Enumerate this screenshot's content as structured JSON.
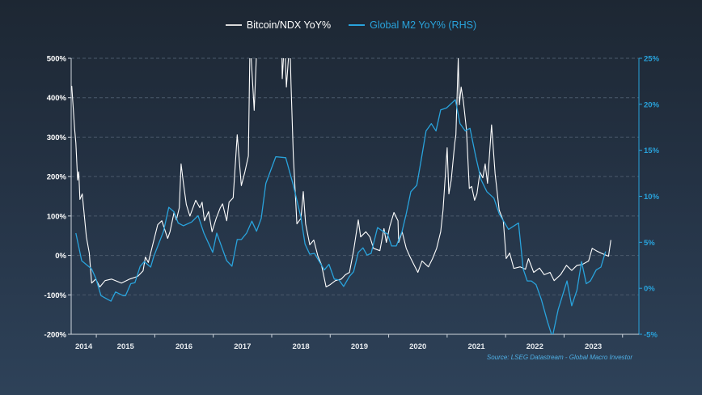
{
  "chart_data": {
    "type": "line",
    "title": "",
    "source": "Source: LSEG Datastream - Global Macro Investor",
    "xlim": [
      2014.57,
      2024.28
    ],
    "x_ticks": [
      2014,
      2015,
      2016,
      2017,
      2018,
      2019,
      2020,
      2021,
      2022,
      2023
    ],
    "legend_placement": "top-center",
    "grid": "horizontal dashed",
    "y_left": {
      "label": "",
      "lim": [
        -200,
        500
      ],
      "ticks": [
        "-200%",
        "-100%",
        "0%",
        "100%",
        "200%",
        "300%",
        "400%",
        "500%"
      ],
      "tick_values": [
        -200,
        -100,
        0,
        100,
        200,
        300,
        400,
        500
      ]
    },
    "y_right": {
      "label": "",
      "lim": [
        -5,
        25
      ],
      "ticks": [
        "-5%",
        "0%",
        "5%",
        "10%",
        "15%",
        "20%",
        "25%"
      ],
      "tick_values": [
        -5,
        0,
        5,
        10,
        15,
        20,
        25
      ]
    },
    "series": [
      {
        "name": "Bitcoin/NDX YoY%",
        "axis": "left",
        "color": "#ffffff",
        "points": [
          [
            2014.58,
            430
          ],
          [
            2014.63,
            320
          ],
          [
            2014.65,
            285
          ],
          [
            2014.68,
            191
          ],
          [
            2014.7,
            212
          ],
          [
            2014.72,
            142
          ],
          [
            2014.76,
            156
          ],
          [
            2014.83,
            47
          ],
          [
            2014.88,
            6
          ],
          [
            2014.92,
            -70
          ],
          [
            2014.99,
            -60
          ],
          [
            2015.06,
            -80
          ],
          [
            2015.15,
            -64
          ],
          [
            2015.26,
            -60
          ],
          [
            2015.43,
            -70
          ],
          [
            2015.57,
            -60
          ],
          [
            2015.71,
            -53
          ],
          [
            2015.8,
            -39
          ],
          [
            2015.84,
            -4
          ],
          [
            2015.89,
            -18
          ],
          [
            2015.94,
            12
          ],
          [
            2016.05,
            78
          ],
          [
            2016.12,
            88
          ],
          [
            2016.22,
            43
          ],
          [
            2016.26,
            60
          ],
          [
            2016.33,
            109
          ],
          [
            2016.37,
            90
          ],
          [
            2016.42,
            121
          ],
          [
            2016.45,
            232
          ],
          [
            2016.49,
            183
          ],
          [
            2016.54,
            129
          ],
          [
            2016.6,
            100
          ],
          [
            2016.7,
            140
          ],
          [
            2016.77,
            121
          ],
          [
            2016.81,
            135
          ],
          [
            2016.85,
            88
          ],
          [
            2016.92,
            111
          ],
          [
            2016.98,
            60
          ],
          [
            2017.05,
            94
          ],
          [
            2017.12,
            121
          ],
          [
            2017.16,
            131
          ],
          [
            2017.23,
            88
          ],
          [
            2017.27,
            135
          ],
          [
            2017.34,
            146
          ],
          [
            2017.41,
            306
          ],
          [
            2017.48,
            177
          ],
          [
            2017.54,
            211
          ],
          [
            2017.6,
            252
          ],
          [
            2017.63,
            550
          ],
          [
            2017.7,
            368
          ],
          [
            2017.75,
            550
          ],
          [
            2017.85,
            650
          ],
          [
            2017.95,
            650
          ],
          [
            2018.17,
            550
          ],
          [
            2018.18,
            448
          ],
          [
            2018.22,
            550
          ],
          [
            2018.25,
            427
          ],
          [
            2018.31,
            550
          ],
          [
            2018.33,
            437
          ],
          [
            2018.37,
            252
          ],
          [
            2018.43,
            80
          ],
          [
            2018.5,
            94
          ],
          [
            2018.54,
            162
          ],
          [
            2018.58,
            80
          ],
          [
            2018.65,
            27
          ],
          [
            2018.72,
            39
          ],
          [
            2018.79,
            -2
          ],
          [
            2018.85,
            -23
          ],
          [
            2018.93,
            -80
          ],
          [
            2019.0,
            -74
          ],
          [
            2019.09,
            -64
          ],
          [
            2019.19,
            -60
          ],
          [
            2019.26,
            -49
          ],
          [
            2019.33,
            -43
          ],
          [
            2019.4,
            12
          ],
          [
            2019.48,
            90
          ],
          [
            2019.52,
            47
          ],
          [
            2019.61,
            60
          ],
          [
            2019.68,
            47
          ],
          [
            2019.74,
            18
          ],
          [
            2019.85,
            12
          ],
          [
            2019.92,
            68
          ],
          [
            2019.96,
            33
          ],
          [
            2020.02,
            74
          ],
          [
            2020.09,
            109
          ],
          [
            2020.16,
            88
          ],
          [
            2020.17,
            33
          ],
          [
            2020.23,
            60
          ],
          [
            2020.3,
            18
          ],
          [
            2020.36,
            -2
          ],
          [
            2020.43,
            -23
          ],
          [
            2020.5,
            -43
          ],
          [
            2020.57,
            -14
          ],
          [
            2020.68,
            -29
          ],
          [
            2020.75,
            -8
          ],
          [
            2020.82,
            18
          ],
          [
            2020.89,
            60
          ],
          [
            2020.93,
            115
          ],
          [
            2021.0,
            273
          ],
          [
            2021.03,
            156
          ],
          [
            2021.07,
            191
          ],
          [
            2021.13,
            285
          ],
          [
            2021.15,
            306
          ],
          [
            2021.19,
            500
          ],
          [
            2021.21,
            382
          ],
          [
            2021.24,
            427
          ],
          [
            2021.28,
            388
          ],
          [
            2021.33,
            320
          ],
          [
            2021.38,
            170
          ],
          [
            2021.42,
            175
          ],
          [
            2021.47,
            140
          ],
          [
            2021.51,
            156
          ],
          [
            2021.56,
            211
          ],
          [
            2021.61,
            197
          ],
          [
            2021.65,
            232
          ],
          [
            2021.69,
            183
          ],
          [
            2021.76,
            331
          ],
          [
            2021.82,
            207
          ],
          [
            2021.89,
            115
          ],
          [
            2021.96,
            88
          ],
          [
            2022.01,
            -8
          ],
          [
            2022.07,
            6
          ],
          [
            2022.14,
            -33
          ],
          [
            2022.25,
            -29
          ],
          [
            2022.34,
            -35
          ],
          [
            2022.39,
            -8
          ],
          [
            2022.48,
            -43
          ],
          [
            2022.58,
            -32
          ],
          [
            2022.66,
            -49
          ],
          [
            2022.76,
            -43
          ],
          [
            2022.83,
            -64
          ],
          [
            2022.94,
            -49
          ],
          [
            2023.04,
            -25
          ],
          [
            2023.13,
            -38
          ],
          [
            2023.22,
            -25
          ],
          [
            2023.31,
            -23
          ],
          [
            2023.42,
            -14
          ],
          [
            2023.48,
            18
          ],
          [
            2023.55,
            12
          ],
          [
            2023.63,
            6
          ],
          [
            2023.76,
            -2
          ],
          [
            2023.8,
            39
          ]
        ]
      },
      {
        "name": "Global M2 YoY% (RHS)",
        "axis": "right",
        "color": "#29a3dc",
        "points": [
          [
            2014.65,
            6.0
          ],
          [
            2014.75,
            3.0
          ],
          [
            2014.92,
            2.1
          ],
          [
            2014.99,
            1.1
          ],
          [
            2015.08,
            -0.8
          ],
          [
            2015.25,
            -1.4
          ],
          [
            2015.33,
            -0.4
          ],
          [
            2015.46,
            -0.8
          ],
          [
            2015.5,
            -0.8
          ],
          [
            2015.59,
            0.5
          ],
          [
            2015.66,
            0.6
          ],
          [
            2015.75,
            2.4
          ],
          [
            2015.82,
            2.9
          ],
          [
            2015.93,
            2.3
          ],
          [
            2015.98,
            3.4
          ],
          [
            2016.15,
            6.2
          ],
          [
            2016.24,
            8.8
          ],
          [
            2016.33,
            8.3
          ],
          [
            2016.4,
            7.1
          ],
          [
            2016.49,
            6.8
          ],
          [
            2016.63,
            7.2
          ],
          [
            2016.74,
            7.9
          ],
          [
            2016.84,
            6.0
          ],
          [
            2016.99,
            3.9
          ],
          [
            2017.06,
            6.0
          ],
          [
            2017.23,
            3.0
          ],
          [
            2017.32,
            2.4
          ],
          [
            2017.41,
            5.3
          ],
          [
            2017.48,
            5.3
          ],
          [
            2017.57,
            6.0
          ],
          [
            2017.66,
            7.3
          ],
          [
            2017.74,
            6.2
          ],
          [
            2017.82,
            7.6
          ],
          [
            2017.9,
            11.4
          ],
          [
            2018.07,
            14.3
          ],
          [
            2018.24,
            14.2
          ],
          [
            2018.37,
            11.2
          ],
          [
            2018.5,
            7.7
          ],
          [
            2018.57,
            4.8
          ],
          [
            2018.65,
            3.7
          ],
          [
            2018.73,
            3.8
          ],
          [
            2018.9,
            2.0
          ],
          [
            2018.98,
            2.6
          ],
          [
            2019.07,
            1.0
          ],
          [
            2019.15,
            0.9
          ],
          [
            2019.23,
            0.2
          ],
          [
            2019.33,
            1.3
          ],
          [
            2019.4,
            1.8
          ],
          [
            2019.48,
            3.9
          ],
          [
            2019.56,
            4.4
          ],
          [
            2019.63,
            3.6
          ],
          [
            2019.7,
            3.8
          ],
          [
            2019.81,
            6.6
          ],
          [
            2019.9,
            6.2
          ],
          [
            2019.98,
            5.9
          ],
          [
            2020.05,
            4.6
          ],
          [
            2020.13,
            4.6
          ],
          [
            2020.23,
            6.2
          ],
          [
            2020.3,
            8.1
          ],
          [
            2020.38,
            10.5
          ],
          [
            2020.48,
            11.2
          ],
          [
            2020.55,
            13.7
          ],
          [
            2020.64,
            17.1
          ],
          [
            2020.73,
            17.9
          ],
          [
            2020.81,
            17.1
          ],
          [
            2020.89,
            19.4
          ],
          [
            2020.99,
            19.6
          ],
          [
            2021.14,
            20.5
          ],
          [
            2021.22,
            17.9
          ],
          [
            2021.31,
            17.1
          ],
          [
            2021.39,
            17.4
          ],
          [
            2021.49,
            14.3
          ],
          [
            2021.58,
            11.8
          ],
          [
            2021.68,
            10.5
          ],
          [
            2021.8,
            9.8
          ],
          [
            2021.89,
            8.1
          ],
          [
            2022.05,
            6.4
          ],
          [
            2022.22,
            7.1
          ],
          [
            2022.3,
            2.1
          ],
          [
            2022.37,
            0.8
          ],
          [
            2022.44,
            0.8
          ],
          [
            2022.52,
            0.4
          ],
          [
            2022.61,
            -1.2
          ],
          [
            2022.72,
            -3.7
          ],
          [
            2022.8,
            -5.3
          ],
          [
            2022.9,
            -2.3
          ],
          [
            2023.05,
            0.8
          ],
          [
            2023.13,
            -1.9
          ],
          [
            2023.22,
            -0.2
          ],
          [
            2023.3,
            2.9
          ],
          [
            2023.38,
            0.5
          ],
          [
            2023.45,
            0.8
          ],
          [
            2023.55,
            2.0
          ],
          [
            2023.63,
            2.3
          ],
          [
            2023.71,
            4.0
          ]
        ]
      }
    ]
  }
}
